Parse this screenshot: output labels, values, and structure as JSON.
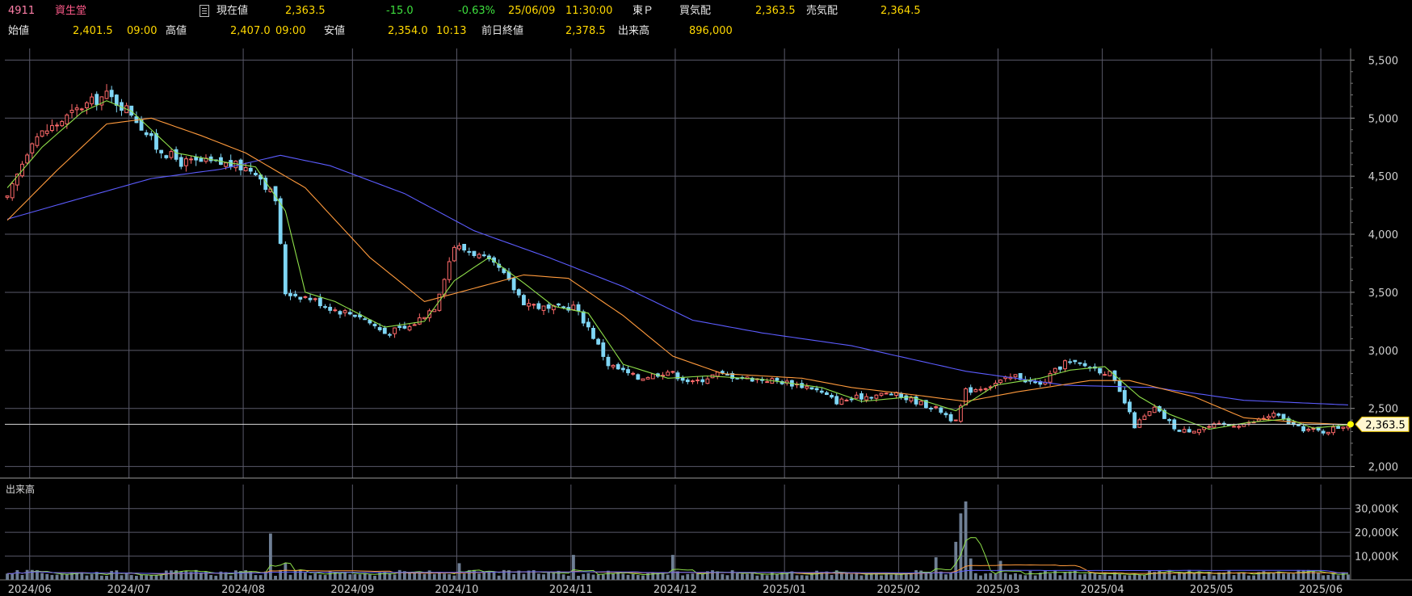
{
  "header": {
    "code": "4911",
    "name": "資生堂",
    "current_label": "現在値",
    "current_value": "2,363.5",
    "change": "-15.0",
    "change_pct": "-0.63%",
    "date": "25/06/09",
    "time": "11:30:00",
    "market": "東Ｐ",
    "bid_label": "買気配",
    "bid_value": "2,363.5",
    "ask_label": "売気配",
    "ask_value": "2,364.5",
    "open_label": "始値",
    "open_value": "2,401.5",
    "open_time": "09:00",
    "high_label": "高値",
    "high_value": "2,407.0",
    "high_time": "09:00",
    "low_label": "安値",
    "low_value": "2,354.0",
    "low_time": "10:13",
    "prev_label": "前日終値",
    "prev_value": "2,378.5",
    "volume_label": "出来高",
    "volume_value": "896,000"
  },
  "colors": {
    "up": "#ff6a6a",
    "down": "#7fd6f5",
    "ma_short": "#8fe04a",
    "ma_mid": "#ff9a3c",
    "ma_long": "#5c5cff",
    "grid": "#5a5a6a",
    "volume": "#6f7f95",
    "price_marker": "#ffff00"
  },
  "chart_data": [
    {
      "type": "candlestick",
      "y_ticks": [
        "2,000",
        "2,500",
        "3,000",
        "3,500",
        "4,000",
        "4,500",
        "5,000",
        "5,500"
      ],
      "ylim": [
        1900,
        5600
      ],
      "x_ticks": [
        "2024/06",
        "2024/07",
        "2024/08",
        "2024/09",
        "2024/10",
        "2024/11",
        "2024/12",
        "2025/01",
        "2025/02",
        "2025/03",
        "2025/04",
        "2025/05",
        "2025/06"
      ],
      "current_price": 2363.5,
      "current_price_label": "2,363.5",
      "anchors": [
        [
          "2024-05-27",
          4300
        ],
        [
          "2024-06-03",
          4820
        ],
        [
          "2024-06-10",
          4950
        ],
        [
          "2024-06-17",
          5100
        ],
        [
          "2024-06-24",
          5200
        ],
        [
          "2024-07-01",
          5050
        ],
        [
          "2024-07-08",
          4750
        ],
        [
          "2024-07-15",
          4620
        ],
        [
          "2024-07-22",
          4620
        ],
        [
          "2024-07-29",
          4600
        ],
        [
          "2024-08-05",
          4550
        ],
        [
          "2024-08-09",
          4300
        ],
        [
          "2024-08-13",
          3500
        ],
        [
          "2024-08-20",
          3450
        ],
        [
          "2024-08-27",
          3350
        ],
        [
          "2024-09-03",
          3300
        ],
        [
          "2024-09-10",
          3150
        ],
        [
          "2024-09-17",
          3200
        ],
        [
          "2024-09-24",
          3380
        ],
        [
          "2024-09-30",
          3900
        ],
        [
          "2024-10-04",
          3840
        ],
        [
          "2024-10-11",
          3700
        ],
        [
          "2024-10-18",
          3420
        ],
        [
          "2024-10-25",
          3350
        ],
        [
          "2024-11-01",
          3380
        ],
        [
          "2024-11-06",
          3200
        ],
        [
          "2024-11-12",
          2880
        ],
        [
          "2024-11-20",
          2760
        ],
        [
          "2024-11-28",
          2820
        ],
        [
          "2024-12-05",
          2720
        ],
        [
          "2024-12-12",
          2800
        ],
        [
          "2024-12-20",
          2760
        ],
        [
          "2024-12-30",
          2740
        ],
        [
          "2025-01-08",
          2680
        ],
        [
          "2025-01-15",
          2560
        ],
        [
          "2025-01-22",
          2600
        ],
        [
          "2025-01-30",
          2630
        ],
        [
          "2025-02-06",
          2560
        ],
        [
          "2025-02-13",
          2480
        ],
        [
          "2025-02-18",
          2380
        ],
        [
          "2025-02-20",
          2650
        ],
        [
          "2025-02-27",
          2700
        ],
        [
          "2025-03-06",
          2780
        ],
        [
          "2025-03-13",
          2700
        ],
        [
          "2025-03-20",
          2900
        ],
        [
          "2025-03-27",
          2860
        ],
        [
          "2025-04-02",
          2800
        ],
        [
          "2025-04-07",
          2550
        ],
        [
          "2025-04-09",
          2350
        ],
        [
          "2025-04-15",
          2500
        ],
        [
          "2025-04-22",
          2300
        ],
        [
          "2025-05-01",
          2350
        ],
        [
          "2025-05-12",
          2370
        ],
        [
          "2025-05-19",
          2450
        ],
        [
          "2025-05-26",
          2330
        ],
        [
          "2025-06-02",
          2300
        ],
        [
          "2025-06-09",
          2363.5
        ]
      ],
      "ma_short": [
        [
          "2024-05-27",
          4400
        ],
        [
          "2024-06-05",
          4750
        ],
        [
          "2024-06-17",
          5050
        ],
        [
          "2024-06-24",
          5150
        ],
        [
          "2024-07-01",
          5060
        ],
        [
          "2024-07-12",
          4700
        ],
        [
          "2024-07-26",
          4620
        ],
        [
          "2024-08-05",
          4580
        ],
        [
          "2024-08-13",
          4200
        ],
        [
          "2024-08-19",
          3500
        ],
        [
          "2024-08-27",
          3420
        ],
        [
          "2024-09-10",
          3200
        ],
        [
          "2024-09-20",
          3250
        ],
        [
          "2024-09-30",
          3600
        ],
        [
          "2024-10-09",
          3800
        ],
        [
          "2024-10-18",
          3580
        ],
        [
          "2024-10-28",
          3380
        ],
        [
          "2024-11-06",
          3320
        ],
        [
          "2024-11-15",
          2880
        ],
        [
          "2024-11-28",
          2760
        ],
        [
          "2024-12-10",
          2780
        ],
        [
          "2024-12-25",
          2750
        ],
        [
          "2025-01-10",
          2680
        ],
        [
          "2025-01-22",
          2560
        ],
        [
          "2025-02-05",
          2600
        ],
        [
          "2025-02-18",
          2480
        ],
        [
          "2025-02-28",
          2700
        ],
        [
          "2025-03-13",
          2760
        ],
        [
          "2025-03-21",
          2830
        ],
        [
          "2025-04-01",
          2860
        ],
        [
          "2025-04-10",
          2600
        ],
        [
          "2025-04-18",
          2450
        ],
        [
          "2025-04-30",
          2320
        ],
        [
          "2025-05-12",
          2380
        ],
        [
          "2025-05-22",
          2410
        ],
        [
          "2025-05-29",
          2330
        ],
        [
          "2025-06-09",
          2360
        ]
      ],
      "ma_mid": [
        [
          "2024-05-27",
          4120
        ],
        [
          "2024-06-10",
          4550
        ],
        [
          "2024-06-24",
          4950
        ],
        [
          "2024-07-05",
          5000
        ],
        [
          "2024-07-19",
          4850
        ],
        [
          "2024-08-01",
          4700
        ],
        [
          "2024-08-19",
          4400
        ],
        [
          "2024-09-05",
          3800
        ],
        [
          "2024-09-20",
          3420
        ],
        [
          "2024-10-01",
          3500
        ],
        [
          "2024-10-18",
          3650
        ],
        [
          "2024-10-31",
          3620
        ],
        [
          "2024-11-15",
          3300
        ],
        [
          "2024-11-29",
          2950
        ],
        [
          "2024-12-13",
          2800
        ],
        [
          "2025-01-05",
          2760
        ],
        [
          "2025-01-20",
          2680
        ],
        [
          "2025-02-05",
          2620
        ],
        [
          "2025-02-20",
          2560
        ],
        [
          "2025-03-06",
          2640
        ],
        [
          "2025-03-27",
          2740
        ],
        [
          "2025-04-08",
          2740
        ],
        [
          "2025-04-25",
          2600
        ],
        [
          "2025-05-09",
          2420
        ],
        [
          "2025-05-26",
          2380
        ],
        [
          "2025-06-09",
          2360
        ]
      ],
      "ma_long": [
        [
          "2024-05-27",
          4130
        ],
        [
          "2024-06-15",
          4300
        ],
        [
          "2024-07-05",
          4480
        ],
        [
          "2024-07-25",
          4560
        ],
        [
          "2024-08-12",
          4680
        ],
        [
          "2024-08-26",
          4590
        ],
        [
          "2024-09-15",
          4350
        ],
        [
          "2024-10-05",
          4030
        ],
        [
          "2024-10-25",
          3800
        ],
        [
          "2024-11-15",
          3550
        ],
        [
          "2024-12-05",
          3260
        ],
        [
          "2024-12-25",
          3150
        ],
        [
          "2025-01-20",
          3040
        ],
        [
          "2025-02-20",
          2820
        ],
        [
          "2025-03-20",
          2700
        ],
        [
          "2025-04-15",
          2680
        ],
        [
          "2025-05-10",
          2570
        ],
        [
          "2025-06-09",
          2530
        ]
      ]
    },
    {
      "type": "bar",
      "title": "出来高",
      "y_ticks": [
        "10,000K",
        "20,000K",
        "30,000K"
      ],
      "ylim": [
        0,
        35000
      ],
      "spikes": [
        [
          "2024-08-08",
          19500
        ],
        [
          "2024-08-13",
          7000
        ],
        [
          "2024-10-01",
          7000
        ],
        [
          "2024-11-01",
          10500
        ],
        [
          "2024-11-29",
          10500
        ],
        [
          "2025-02-12",
          9500
        ],
        [
          "2025-02-18",
          16000
        ],
        [
          "2025-02-19",
          28000
        ],
        [
          "2025-02-20",
          33000
        ],
        [
          "2025-02-21",
          9000
        ],
        [
          "2025-03-03",
          8000
        ]
      ],
      "base_volume": 2800
    }
  ]
}
